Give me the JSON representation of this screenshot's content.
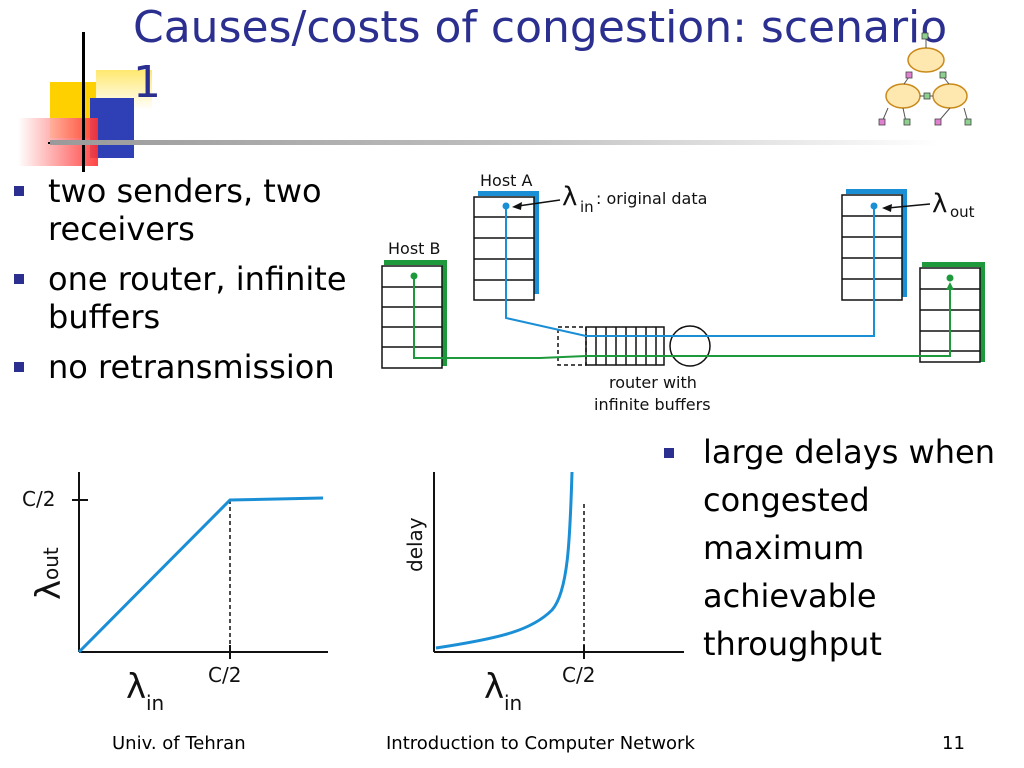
{
  "slide": {
    "title": "Causes/costs of congestion: scenario 1",
    "bullets_left": [
      "two senders, two receivers",
      "one router, infinite buffers",
      "no retransmission"
    ],
    "bullets_right": {
      "bullet": "large delays when congested",
      "plain": "maximum achievable throughput"
    },
    "footer": {
      "left": "Univ. of Tehran",
      "center": "Introduction to Computer Network",
      "page": "11"
    }
  },
  "diagram": {
    "host_a": "Host A",
    "host_b": "Host B",
    "lambda": "λ",
    "in_sub": "in",
    "out_sub": "out",
    "original_data": ": original data",
    "router_line1": "router with",
    "router_line2": "infinite buffers"
  },
  "graphs": {
    "c2": "C/2",
    "delay": "delay"
  },
  "colors": {
    "title": "#2b2f8f",
    "flow_a": "#1a8fd6",
    "flow_b": "#1e9a3c"
  }
}
